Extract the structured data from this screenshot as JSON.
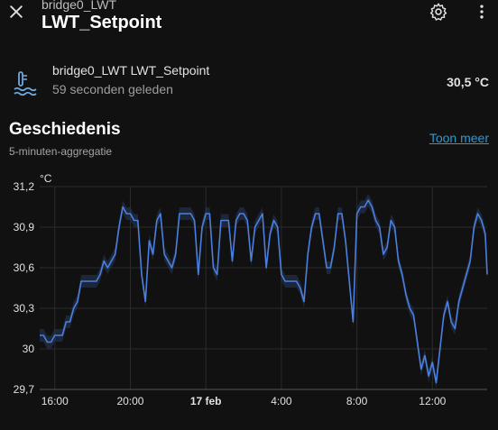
{
  "header": {
    "subtitle": "bridge0_LWT",
    "title": "LWT_Setpoint",
    "icons": {
      "close": "close-icon",
      "settings": "gear-icon",
      "more": "more-vertical-icon"
    }
  },
  "entity": {
    "name": "bridge0_LWT LWT_Setpoint",
    "last_changed": "59 seconden geleden",
    "state": "30,5 °C",
    "icon": "water-thermometer-icon"
  },
  "history": {
    "title": "Geschiedenis",
    "subtitle": "5-minuten-aggregatie",
    "show_more": "Toon meer"
  },
  "colors": {
    "background": "#111111",
    "line": "#4a7fe0",
    "band": "#2a3a5c",
    "link": "#2a9bd6",
    "grid": "#2b2b2b",
    "icon": "#6fa8dc"
  },
  "chart_data": {
    "type": "line",
    "unit_label": "°C",
    "x_ticks": [
      {
        "label": "16:00",
        "x": 1
      },
      {
        "label": "20:00",
        "x": 5
      },
      {
        "label": "17 feb",
        "x": 9,
        "bold": true
      },
      {
        "label": "4:00",
        "x": 13
      },
      {
        "label": "8:00",
        "x": 17
      },
      {
        "label": "12:00",
        "x": 21
      }
    ],
    "y_ticks": [
      "29,7",
      "30",
      "30,3",
      "30,6",
      "30,9",
      "31,2"
    ],
    "y_tick_values": [
      29.7,
      30.0,
      30.3,
      30.6,
      30.9,
      31.2
    ],
    "ylim": [
      29.7,
      31.2
    ],
    "xlim": [
      0.2,
      23.9
    ],
    "grid": true,
    "series": [
      {
        "x": [
          0.2,
          0.4,
          0.6,
          0.8,
          1.0,
          1.2,
          1.4,
          1.6,
          1.8,
          2.0,
          2.2,
          2.4,
          2.6,
          2.8,
          3.0,
          3.2,
          3.4,
          3.6,
          3.8,
          4.0,
          4.2,
          4.4,
          4.6,
          4.8,
          5.0,
          5.2,
          5.4,
          5.6,
          5.8,
          6.0,
          6.2,
          6.4,
          6.6,
          6.8,
          7.0,
          7.2,
          7.4,
          7.6,
          7.8,
          8.0,
          8.2,
          8.4,
          8.6,
          8.8,
          9.0,
          9.2,
          9.4,
          9.6,
          9.8,
          10.0,
          10.2,
          10.4,
          10.6,
          10.8,
          11.0,
          11.2,
          11.4,
          11.6,
          11.8,
          12.0,
          12.2,
          12.4,
          12.6,
          12.8,
          13.0,
          13.2,
          13.4,
          13.6,
          13.8,
          14.0,
          14.2,
          14.4,
          14.6,
          14.8,
          15.0,
          15.2,
          15.4,
          15.6,
          15.8,
          16.0,
          16.2,
          16.4,
          16.6,
          16.8,
          17.0,
          17.2,
          17.4,
          17.6,
          17.8,
          18.0,
          18.2,
          18.4,
          18.6,
          18.8,
          19.0,
          19.2,
          19.4,
          19.6,
          19.8,
          20.0,
          20.2,
          20.4,
          20.6,
          20.8,
          21.0,
          21.2,
          21.4,
          21.6,
          21.8,
          22.0,
          22.2,
          22.4,
          22.6,
          22.8,
          23.0,
          23.2,
          23.4,
          23.6,
          23.8,
          23.9
        ],
        "y": [
          30.1,
          30.1,
          30.05,
          30.05,
          30.1,
          30.1,
          30.1,
          30.2,
          30.2,
          30.3,
          30.35,
          30.5,
          30.5,
          30.5,
          30.5,
          30.5,
          30.55,
          30.65,
          30.6,
          30.65,
          30.7,
          30.9,
          31.05,
          31.0,
          31.0,
          30.95,
          30.95,
          30.55,
          30.35,
          30.8,
          30.7,
          30.95,
          31.0,
          30.7,
          30.65,
          30.6,
          30.7,
          31.0,
          31.0,
          31.0,
          31.0,
          30.95,
          30.55,
          30.9,
          31.0,
          31.0,
          30.6,
          30.55,
          30.95,
          30.95,
          30.95,
          30.65,
          30.95,
          31.0,
          31.0,
          30.95,
          30.65,
          30.9,
          30.95,
          31.0,
          30.6,
          30.85,
          30.95,
          30.9,
          30.55,
          30.5,
          30.5,
          30.5,
          30.5,
          30.45,
          30.35,
          30.7,
          30.9,
          31.0,
          31.0,
          30.8,
          30.6,
          30.6,
          30.75,
          31.0,
          31.0,
          30.8,
          30.5,
          30.2,
          31.0,
          31.05,
          31.05,
          31.1,
          31.05,
          30.95,
          30.9,
          30.7,
          30.75,
          30.95,
          30.9,
          30.65,
          30.55,
          30.4,
          30.3,
          30.25,
          30.05,
          29.85,
          29.95,
          29.8,
          29.9,
          29.75,
          30.0,
          30.25,
          30.35,
          30.2,
          30.15,
          30.35,
          30.45,
          30.55,
          30.65,
          30.9,
          31.0,
          30.95,
          30.85,
          30.55
        ]
      }
    ]
  }
}
